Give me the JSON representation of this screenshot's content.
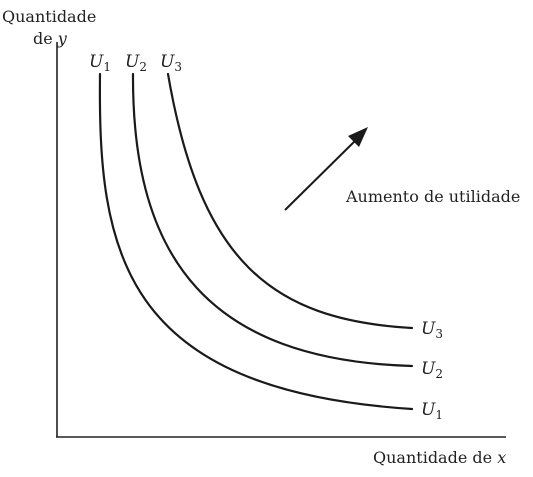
{
  "y_axis_label": {
    "line1": "Quantidade",
    "line2_prefix": "de ",
    "line2_var": "y"
  },
  "x_axis_label": {
    "prefix": "Quantidade de ",
    "var": "x"
  },
  "annotation": "Aumento de utilidade",
  "curves": [
    {
      "letter": "U",
      "sub": "1"
    },
    {
      "letter": "U",
      "sub": "2"
    },
    {
      "letter": "U",
      "sub": "3"
    }
  ]
}
